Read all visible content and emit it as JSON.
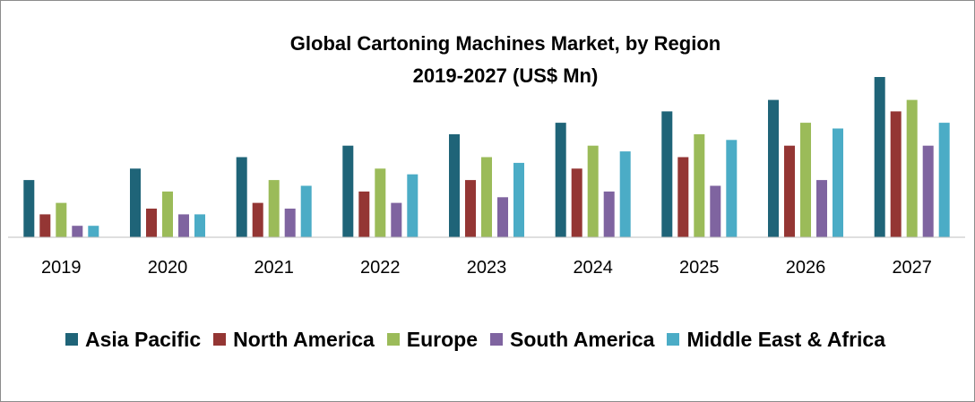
{
  "chart_data": {
    "type": "bar",
    "title_line1": "Global Cartoning Machines Market, by Region",
    "title_line2": "2019-2027 (US$ Mn)",
    "categories": [
      "2019",
      "2020",
      "2021",
      "2022",
      "2023",
      "2024",
      "2025",
      "2026",
      "2027"
    ],
    "series": [
      {
        "name": "Asia Pacific",
        "color": "#1f6478",
        "values": [
          5,
          6,
          7,
          8,
          9,
          10,
          11,
          12,
          14
        ]
      },
      {
        "name": "North America",
        "color": "#943634",
        "values": [
          2,
          2.5,
          3,
          4,
          5,
          6,
          7,
          8,
          11
        ]
      },
      {
        "name": "Europe",
        "color": "#9bbb59",
        "values": [
          3,
          4,
          5,
          6,
          7,
          8,
          9,
          10,
          12
        ]
      },
      {
        "name": "South America",
        "color": "#7f64a0",
        "values": [
          1,
          2,
          2.5,
          3,
          3.5,
          4,
          4.5,
          5,
          8
        ]
      },
      {
        "name": "Middle East & Africa",
        "color": "#4bacc6",
        "values": [
          1,
          2,
          4.5,
          5.5,
          6.5,
          7.5,
          8.5,
          9.5,
          10
        ]
      }
    ],
    "ylim": [
      0,
      14
    ],
    "legend_position": "bottom",
    "grid": false
  }
}
